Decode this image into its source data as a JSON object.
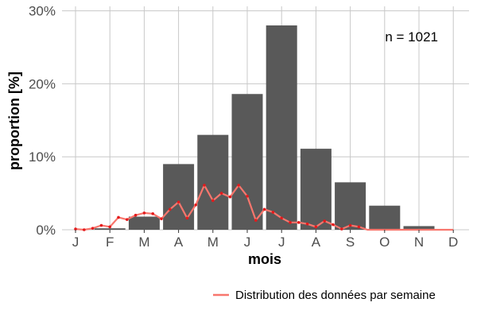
{
  "chart_data": {
    "type": "bar",
    "categories": [
      "J",
      "F",
      "M",
      "A",
      "M",
      "J",
      "J",
      "A",
      "S",
      "O",
      "N",
      "D"
    ],
    "series": [
      {
        "values": [
          0.0,
          0.2,
          1.8,
          9.0,
          13.0,
          18.6,
          28.0,
          11.1,
          6.5,
          3.3,
          0.5,
          0.0
        ],
        "color": "#595959"
      },
      {
        "name": "Distribution des données par semaine",
        "type": "line",
        "color": "#f8766d",
        "point_color": "#e41a1c",
        "x": [
          1.0,
          1.25,
          1.5,
          1.75,
          2.0,
          2.25,
          2.5,
          2.75,
          3.0,
          3.25,
          3.5,
          3.75,
          4.0,
          4.25,
          4.5,
          4.75,
          5.0,
          5.25,
          5.5,
          5.75,
          6.0,
          6.25,
          6.5,
          6.75,
          7.0,
          7.25,
          7.5,
          7.75,
          8.0,
          8.25,
          8.5,
          8.75,
          9.0,
          9.25,
          9.5,
          9.75,
          10.0,
          10.25,
          10.5,
          10.75,
          11.0,
          11.25,
          11.5,
          11.75,
          12.0
        ],
        "values": [
          0.1,
          0.0,
          0.2,
          0.6,
          0.4,
          1.7,
          1.4,
          2.0,
          2.3,
          2.2,
          1.5,
          2.8,
          3.8,
          1.6,
          3.4,
          6.1,
          4.0,
          5.0,
          4.5,
          6.1,
          4.6,
          1.3,
          2.8,
          2.4,
          1.6,
          1.0,
          1.0,
          0.8,
          0.4,
          1.2,
          0.7,
          0.1,
          0.6,
          0.4,
          0.0,
          0.0,
          0.0,
          0.0,
          0.0,
          0.0,
          0.0,
          0.0,
          0.0,
          0.0,
          0.0
        ]
      }
    ],
    "xlabel": "mois",
    "ylabel": "proportion [%]",
    "ylim": [
      0,
      30
    ],
    "yticks": [
      0,
      10,
      20,
      30
    ],
    "ytick_labels": [
      "0%",
      "10%",
      "20%",
      "30%"
    ],
    "grid": true,
    "annotation": "n = 1021",
    "legend_position": "bottom-right"
  }
}
